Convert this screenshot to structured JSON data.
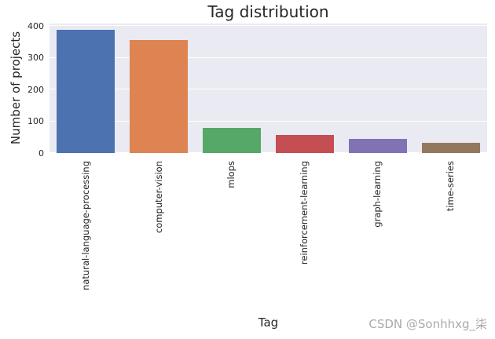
{
  "chart_data": {
    "type": "bar",
    "title": "Tag distribution",
    "xlabel": "Tag",
    "ylabel": "Number of projects",
    "categories": [
      "natural-language-processing",
      "computer-vision",
      "mlops",
      "reinforcement-learning",
      "graph-learning",
      "time-series"
    ],
    "values": [
      388,
      356,
      79,
      56,
      45,
      31
    ],
    "bar_colors": [
      "#4c72b0",
      "#dd8452",
      "#55a868",
      "#c44e52",
      "#8172b3",
      "#937860"
    ],
    "y_ticks": [
      0,
      100,
      200,
      300,
      400
    ],
    "ylim": [
      0,
      408
    ],
    "grid": {
      "axis": "y",
      "line_color": "#ffffff",
      "plot_background": "#eaeaf2"
    },
    "legend_position": "none",
    "x_tick_rotation_deg": 90
  },
  "watermark": {
    "text": "CSDN @Sonhhxg_柒",
    "color": "#aaaaaa"
  },
  "styles": {
    "text_color": "#262626",
    "figure_background": "#ffffff"
  }
}
